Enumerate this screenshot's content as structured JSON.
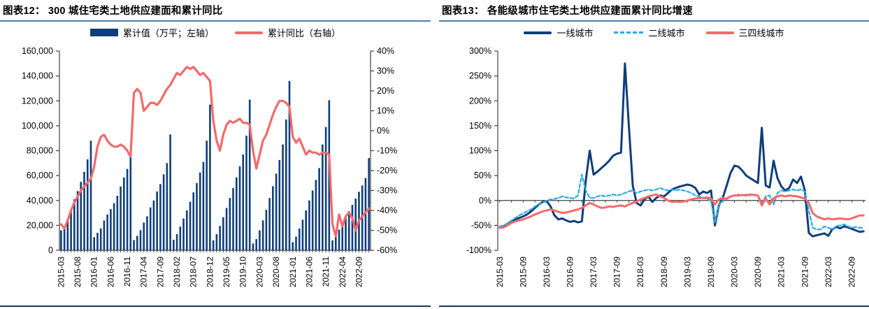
{
  "figure12": {
    "title_prefix": "图表12：",
    "title": "300 城住宅类土地供应建面和累计同比",
    "legend": [
      {
        "label": "累计值（万平；左轴）",
        "type": "bar",
        "color": "#0e3e7b"
      },
      {
        "label": "累计同比（右轴）",
        "type": "line",
        "color": "#f4696b"
      }
    ]
  },
  "figure13": {
    "title_prefix": "图表13：",
    "title": "各能级城市住宅类土地供应建面累计同比增速",
    "legend": [
      {
        "label": "一线城市",
        "type": "line",
        "color": "#0e3e7b"
      },
      {
        "label": "二线城市",
        "type": "dashed-line",
        "color": "#29abe2"
      },
      {
        "label": "三四线城市",
        "type": "line",
        "color": "#f4696b"
      }
    ]
  },
  "chart_data": [
    {
      "type": "bar",
      "title": "300 城住宅类土地供应建面和累计同比",
      "x_start": "2015-03",
      "x_months": 94,
      "x_tick_every": 5,
      "x_tick_labels": [
        "2015-03",
        "2015-08",
        "2016-01",
        "2016-06",
        "2016-11",
        "2017-04",
        "2017-09",
        "2018-02",
        "2018-07",
        "2018-12",
        "2019-05",
        "2019-10",
        "2020-03",
        "2020-08",
        "2021-01",
        "2021-06",
        "2021-11",
        "2022-04",
        "2022-09"
      ],
      "left_axis": {
        "min": 0,
        "max": 160000,
        "step": 20000,
        "tick_labels": [
          "160,000",
          "140,000",
          "120,000",
          "100,000",
          "80,000",
          "60,000",
          "40,000",
          "20,000",
          "0"
        ]
      },
      "right_axis": {
        "min": -60,
        "max": 40,
        "step": 10,
        "tick_labels": [
          "40%",
          "30%",
          "20%",
          "10%",
          "0%",
          "-10%",
          "-20%",
          "-30%",
          "-40%",
          "-50%",
          "-60%"
        ]
      },
      "bars": {
        "name": "累计值（万平；左轴）",
        "color": "#0e3e7b",
        "axis": "left",
        "values": [
          16000,
          17500,
          24000,
          31000,
          41000,
          47500,
          55000,
          63000,
          73000,
          88000,
          10500,
          14000,
          17600,
          24000,
          28800,
          33000,
          37800,
          43800,
          51200,
          58400,
          65300,
          76000,
          8200,
          11600,
          16100,
          22300,
          27300,
          34400,
          40000,
          47200,
          53200,
          61000,
          70000,
          93000,
          8500,
          13000,
          19000,
          25500,
          32000,
          39000,
          46500,
          54000,
          62500,
          71000,
          88000,
          117000,
          8000,
          13000,
          19500,
          26500,
          34000,
          42000,
          50000,
          58500,
          67500,
          77000,
          92000,
          121000,
          5500,
          9000,
          16000,
          24000,
          32500,
          42000,
          51500,
          61500,
          72500,
          85000,
          105000,
          136000,
          6500,
          11000,
          17500,
          24500,
          32000,
          40000,
          48000,
          56500,
          66000,
          85000,
          99000,
          120500,
          8000,
          12000,
          16500,
          21500,
          26500,
          31500,
          36500,
          41500,
          47000,
          52000,
          58000,
          74000
        ]
      },
      "line": {
        "name": "累计同比（右轴）",
        "color": "#f4696b",
        "axis": "right",
        "values": [
          -47,
          -49,
          -45,
          -40,
          -36,
          -33,
          -30,
          -28,
          -26,
          -24,
          -18,
          -8,
          -3,
          -2,
          -5,
          -7,
          -8,
          -8,
          -7,
          -8,
          -10,
          -13,
          19,
          21,
          19,
          10,
          12,
          14,
          14,
          13,
          15,
          18,
          21,
          23,
          26,
          29,
          28,
          30,
          32,
          31,
          32,
          30,
          28,
          29,
          27,
          25,
          5,
          -5,
          -10,
          -2,
          3,
          5,
          4,
          5,
          6,
          4,
          4,
          3,
          -10,
          -19,
          -12,
          -5,
          -2,
          3,
          8,
          12,
          15,
          15,
          14,
          12,
          -3,
          -6,
          -4,
          -8,
          -12,
          -10,
          -11,
          -11,
          -12,
          -11,
          -11,
          -12,
          -47,
          -53,
          -42,
          -48,
          -43,
          -41,
          -44,
          -50,
          -45,
          -43,
          -41,
          -39
        ]
      }
    },
    {
      "type": "line",
      "title": "各能级城市住宅类土地供应建面累计同比增速",
      "x_start": "2015-03",
      "x_months": 94,
      "x_tick_every": 6,
      "x_tick_labels": [
        "2015-03",
        "2015-09",
        "2016-03",
        "2016-09",
        "2017-03",
        "2017-09",
        "2018-03",
        "2018-09",
        "2019-03",
        "2019-09",
        "2020-03",
        "2020-09",
        "2021-03",
        "2021-09",
        "2022-03",
        "2022-09"
      ],
      "y_axis": {
        "min": -100,
        "max": 300,
        "step": 50,
        "tick_labels": [
          "300%",
          "250%",
          "200%",
          "150%",
          "100%",
          "50%",
          "0%",
          "-50%",
          "-100%"
        ]
      },
      "series": [
        {
          "name": "一线城市",
          "color": "#0e3e7b",
          "style": "solid",
          "values": [
            -55,
            -52,
            -47,
            -42,
            -38,
            -35,
            -32,
            -28,
            -22,
            -15,
            -8,
            -3,
            -1,
            -12,
            -30,
            -38,
            -36,
            -40,
            -43,
            -41,
            -44,
            -42,
            40,
            100,
            52,
            58,
            65,
            72,
            80,
            90,
            94,
            96,
            275,
            150,
            30,
            -5,
            -10,
            2,
            8,
            -3,
            5,
            10,
            8,
            15,
            22,
            25,
            28,
            30,
            32,
            30,
            25,
            12,
            18,
            15,
            20,
            -50,
            -10,
            5,
            30,
            55,
            70,
            68,
            60,
            50,
            45,
            40,
            35,
            146,
            30,
            26,
            80,
            45,
            28,
            20,
            25,
            42,
            35,
            48,
            20,
            -65,
            -72,
            -70,
            -68,
            -66,
            -71,
            -58,
            -53,
            -56,
            -52,
            -54,
            -57,
            -60,
            -63,
            -62
          ]
        },
        {
          "name": "二线城市",
          "color": "#29abe2",
          "style": "dashed",
          "values": [
            -52,
            -50,
            -46,
            -40,
            -35,
            -30,
            -26,
            -22,
            -18,
            -12,
            -8,
            -4,
            0,
            2,
            3,
            5,
            8,
            6,
            5,
            4,
            10,
            52,
            20,
            5,
            5,
            8,
            10,
            8,
            10,
            12,
            10,
            12,
            15,
            18,
            20,
            15,
            18,
            20,
            22,
            20,
            22,
            25,
            22,
            20,
            22,
            20,
            22,
            20,
            18,
            15,
            10,
            8,
            5,
            3,
            0,
            -45,
            -10,
            2,
            5,
            8,
            10,
            12,
            10,
            12,
            10,
            12,
            10,
            -5,
            8,
            10,
            -8,
            15,
            20,
            18,
            20,
            22,
            20,
            22,
            18,
            -20,
            -55,
            -58,
            -58,
            -52,
            -55,
            -58,
            -52,
            -50,
            -48,
            -52,
            -55,
            -53,
            -55,
            -55
          ]
        },
        {
          "name": "三四线城市",
          "color": "#f4696b",
          "style": "solid",
          "values": [
            -55,
            -54,
            -50,
            -45,
            -42,
            -40,
            -38,
            -35,
            -32,
            -28,
            -25,
            -22,
            -20,
            -18,
            -20,
            -23,
            -25,
            -24,
            -22,
            -20,
            -18,
            -15,
            -10,
            -5,
            -8,
            -12,
            -15,
            -14,
            -12,
            -13,
            -11,
            -10,
            -12,
            -8,
            -5,
            -2,
            2,
            5,
            8,
            10,
            12,
            8,
            5,
            0,
            -3,
            -2,
            -3,
            -2,
            0,
            2,
            4,
            5,
            5,
            6,
            4,
            -8,
            2,
            5,
            3,
            8,
            10,
            10,
            11,
            10,
            12,
            11,
            10,
            -10,
            4,
            -8,
            5,
            8,
            10,
            8,
            10,
            9,
            8,
            6,
            4,
            -5,
            -25,
            -32,
            -35,
            -38,
            -36,
            -38,
            -37,
            -36,
            -37,
            -38,
            -36,
            -33,
            -30,
            -30
          ]
        }
      ]
    }
  ]
}
